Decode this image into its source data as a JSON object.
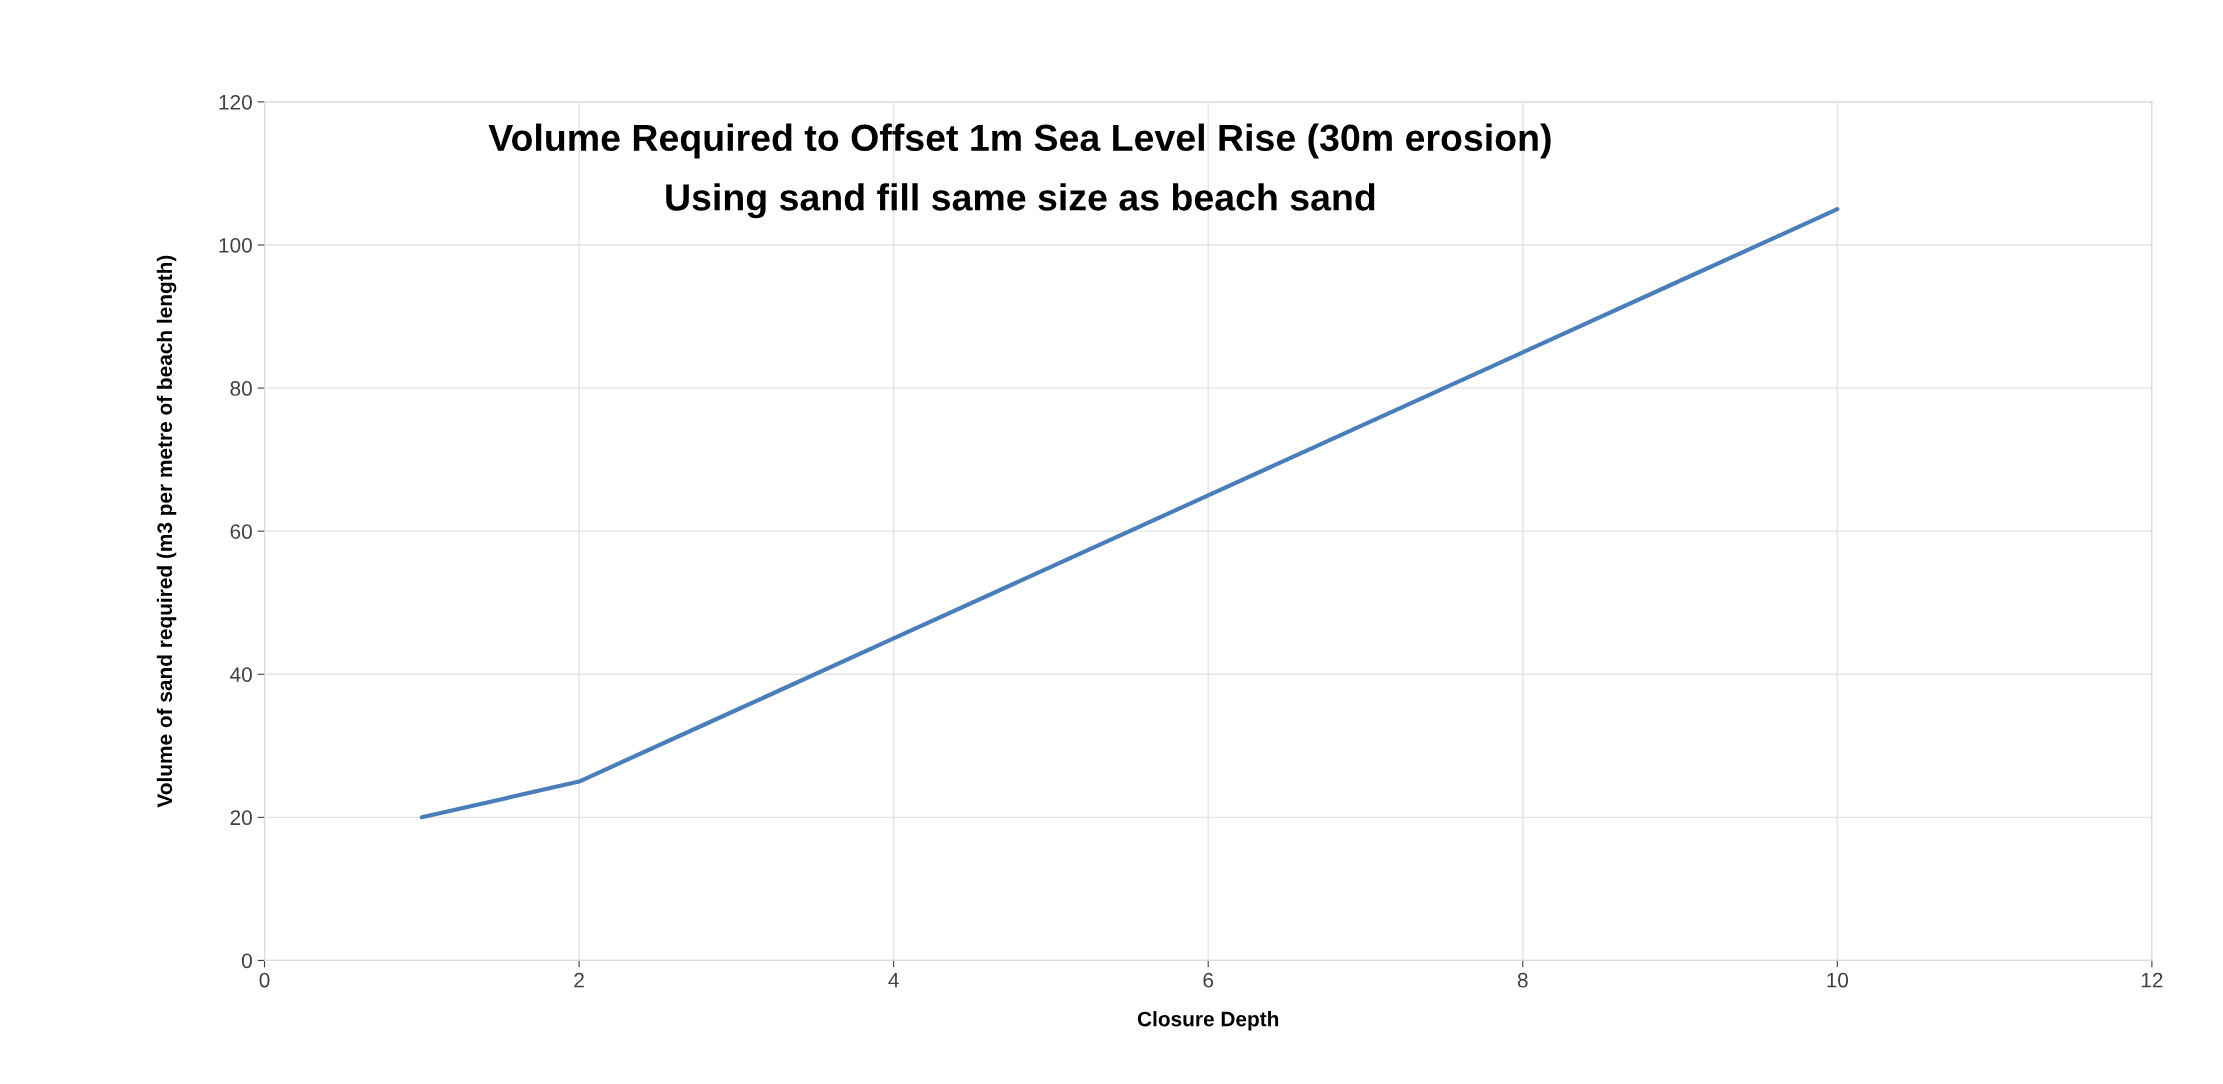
{
  "chart_data": {
    "type": "line",
    "title": "Volume Required to Offset 1m Sea Level Rise (30m erosion)",
    "subtitle": "Using sand fill same size as beach sand",
    "xlabel": "Closure Depth",
    "ylabel": "Volume of sand required (m3 per metre of beach length)",
    "x": [
      1,
      2,
      3,
      4,
      5,
      6,
      7,
      8,
      9,
      10
    ],
    "series": [
      {
        "color": "#4a7ebb",
        "values": [
          20,
          25,
          35,
          45,
          55,
          65,
          75,
          85,
          95,
          105
        ]
      }
    ],
    "xlim": [
      0,
      12
    ],
    "xticks": [
      0,
      2,
      4,
      6,
      8,
      10,
      12
    ],
    "ylim": [
      0,
      120
    ],
    "yticks": [
      0,
      20,
      40,
      60,
      80,
      100,
      120
    ],
    "grid": true,
    "marker": "none",
    "line_style": "solid",
    "legend": false
  }
}
